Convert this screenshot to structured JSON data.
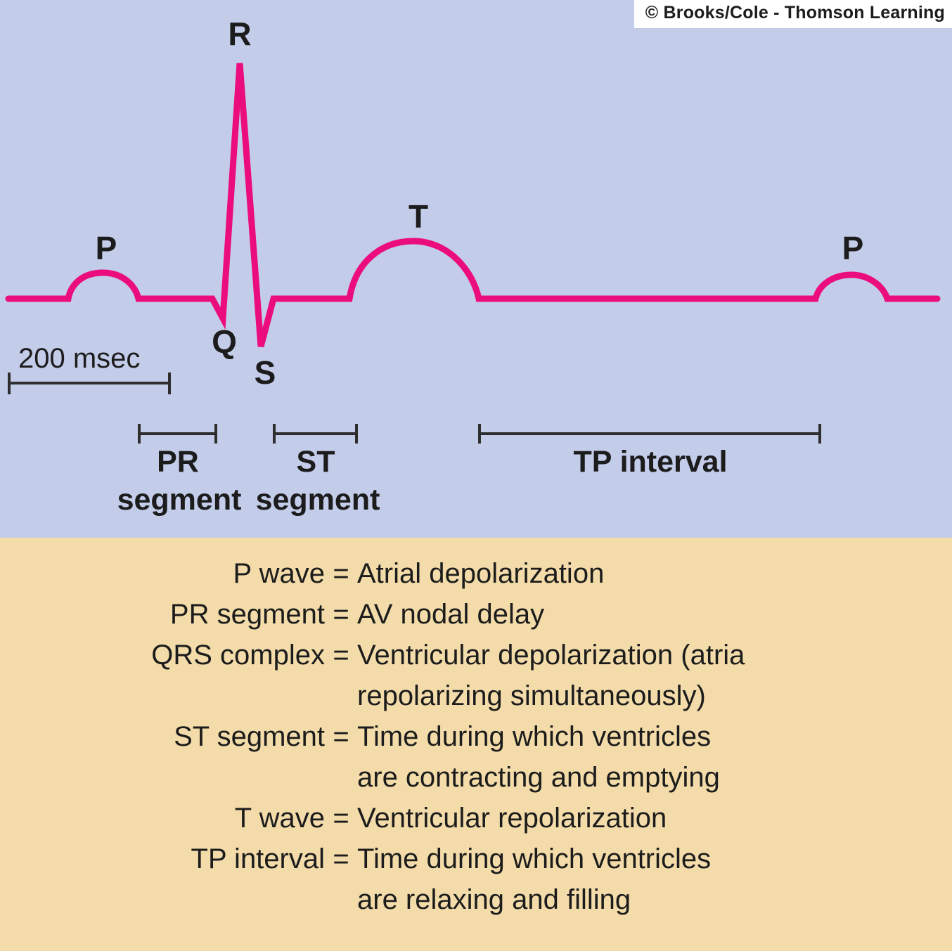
{
  "copyright": "© Brooks/Cole - Thomson Learning",
  "colors": {
    "trace": "#eb0d7e",
    "panel_top": "#c3cce9",
    "panel_bottom": "#f3dcaa",
    "ink": "#1c1c1c",
    "marker": "#2e2e2e"
  },
  "ecg": {
    "labels": {
      "p_first": "P",
      "q": "Q",
      "r": "R",
      "s": "S",
      "t": "T",
      "p_second": "P"
    },
    "scale_bar": "200 msec",
    "markers": {
      "pr_top": "PR",
      "pr_bottom": "segment",
      "st_top": "ST",
      "st_bottom": "segment",
      "tp": "TP interval"
    }
  },
  "legend": {
    "equals": "=",
    "items": [
      {
        "term": "P wave",
        "definition": "Atrial depolarization"
      },
      {
        "term": "PR segment",
        "definition": "AV nodal delay"
      },
      {
        "term": "QRS complex",
        "definition": "Ventricular depolarization (atria\nrepolarizing simultaneously)"
      },
      {
        "term": "ST segment",
        "definition": "Time during which ventricles\nare contracting and emptying"
      },
      {
        "term": "T wave",
        "definition": "Ventricular repolarization"
      },
      {
        "term": "TP interval",
        "definition": "Time during which ventricles\nare relaxing and filling"
      }
    ]
  }
}
